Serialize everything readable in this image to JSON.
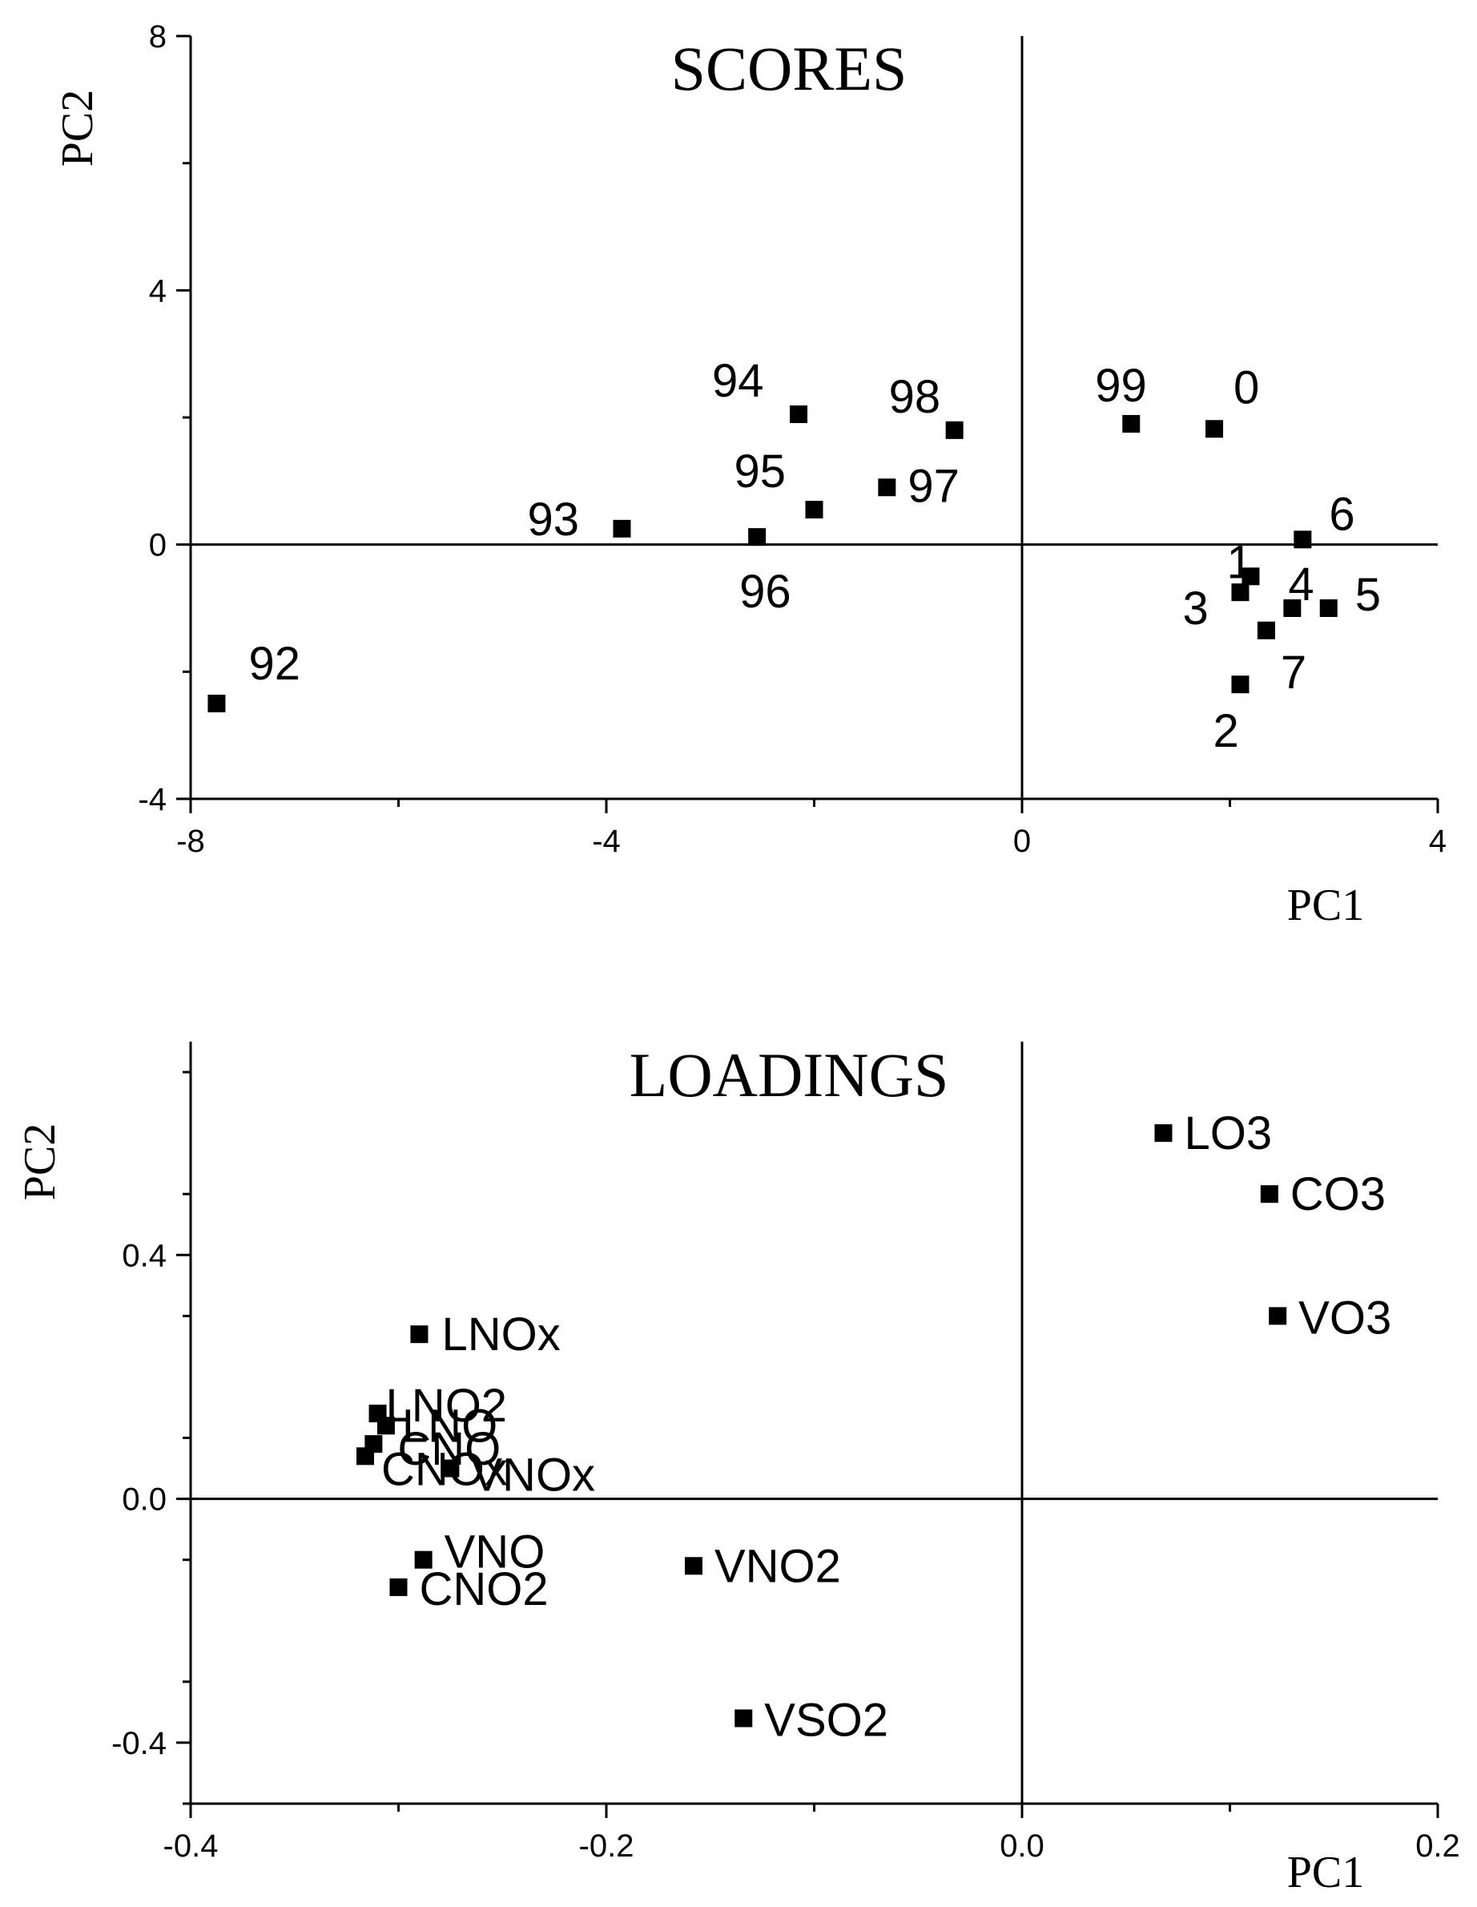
{
  "chart_data": [
    {
      "type": "scatter",
      "title": "SCORES",
      "xlabel": "PC1",
      "ylabel": "PC2",
      "xlim": [
        -8,
        4
      ],
      "ylim": [
        -4,
        8
      ],
      "xticks": [
        {
          "v": -8,
          "label": "-8"
        },
        {
          "v": -4,
          "label": "-4"
        },
        {
          "v": 0,
          "label": "0"
        },
        {
          "v": 4,
          "label": "4"
        }
      ],
      "yticks": [
        {
          "v": -4,
          "label": "-4"
        },
        {
          "v": 0,
          "label": "0"
        },
        {
          "v": 4,
          "label": "4"
        },
        {
          "v": 8,
          "label": "8"
        }
      ],
      "marker": "filled-square",
      "marker_color": "#000000",
      "grid": false,
      "zero_lines": true,
      "points": [
        {
          "label": "92",
          "x": -7.75,
          "y": -2.5
        },
        {
          "label": "93",
          "x": -3.85,
          "y": 0.25
        },
        {
          "label": "94",
          "x": -2.15,
          "y": 2.05
        },
        {
          "label": "95",
          "x": -2.0,
          "y": 0.55
        },
        {
          "label": "96",
          "x": -2.55,
          "y": 0.12
        },
        {
          "label": "97",
          "x": -1.3,
          "y": 0.9
        },
        {
          "label": "98",
          "x": -0.65,
          "y": 1.8
        },
        {
          "label": "99",
          "x": 1.05,
          "y": 1.9
        },
        {
          "label": "0",
          "x": 1.85,
          "y": 1.82
        },
        {
          "label": "1",
          "x": 2.2,
          "y": -0.5
        },
        {
          "label": "2",
          "x": 2.1,
          "y": -2.2
        },
        {
          "label": "3",
          "x": 2.1,
          "y": -0.75
        },
        {
          "label": "4",
          "x": 2.6,
          "y": -1.0
        },
        {
          "label": "5",
          "x": 2.95,
          "y": -1.0
        },
        {
          "label": "6",
          "x": 2.7,
          "y": 0.08
        },
        {
          "label": "7",
          "x": 2.35,
          "y": -1.35
        }
      ]
    },
    {
      "type": "scatter",
      "title": "LOADINGS",
      "xlabel": "PC1",
      "ylabel": "PC2",
      "xlim": [
        -0.4,
        0.2
      ],
      "ylim": [
        -0.5,
        0.75
      ],
      "xticks": [
        {
          "v": -0.4,
          "label": "-0.4"
        },
        {
          "v": -0.2,
          "label": "-0.2"
        },
        {
          "v": 0.0,
          "label": "0.0"
        },
        {
          "v": 0.2,
          "label": "0.2"
        }
      ],
      "yticks": [
        {
          "v": -0.4,
          "label": "-0.4"
        },
        {
          "v": 0.0,
          "label": "0.0"
        },
        {
          "v": 0.4,
          "label": "0.4"
        }
      ],
      "marker": "filled-square",
      "marker_color": "#000000",
      "grid": false,
      "zero_lines": true,
      "points": [
        {
          "label": "LO3",
          "x": 0.068,
          "y": 0.6
        },
        {
          "label": "CO3",
          "x": 0.119,
          "y": 0.5
        },
        {
          "label": "VO3",
          "x": 0.123,
          "y": 0.3
        },
        {
          "label": "LNOx",
          "x": -0.29,
          "y": 0.27
        },
        {
          "label": "LNO2",
          "x": -0.31,
          "y": 0.14
        },
        {
          "label": "LNO",
          "x": -0.306,
          "y": 0.12
        },
        {
          "label": "CNO",
          "x": -0.312,
          "y": 0.09
        },
        {
          "label": "CNOx",
          "x": -0.316,
          "y": 0.07
        },
        {
          "label": "VNOx",
          "x": -0.275,
          "y": 0.05
        },
        {
          "label": "VNO",
          "x": -0.288,
          "y": -0.1
        },
        {
          "label": "CNO2",
          "x": -0.3,
          "y": -0.145
        },
        {
          "label": "VNO2",
          "x": -0.158,
          "y": -0.11
        },
        {
          "label": "VSO2",
          "x": -0.134,
          "y": -0.36
        }
      ]
    }
  ]
}
